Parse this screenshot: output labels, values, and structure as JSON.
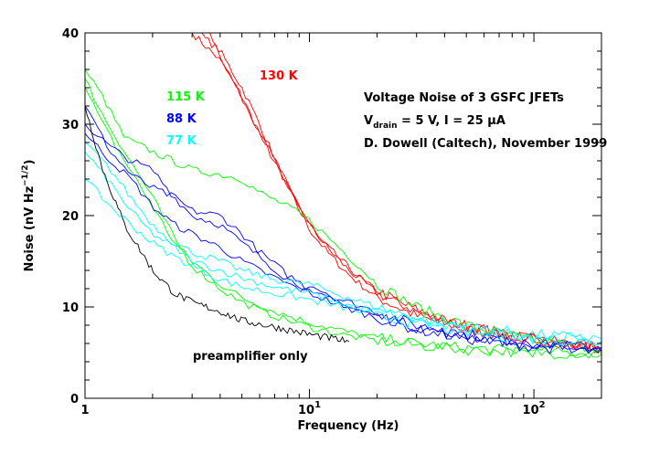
{
  "chart_data": {
    "type": "line",
    "title": "Voltage Noise of 3 GSFC JFETs",
    "subtitle_lines": [
      {
        "prefix": "V",
        "sub": "drain",
        "rest": " = 5 V, I = 25 μA"
      },
      {
        "text": "D. Dowell (Caltech), November 1999"
      }
    ],
    "xlabel": "Frequency (Hz)",
    "ylabel": {
      "main": "Noise (nV Hz",
      "sup": "−1/2",
      "end": ")"
    },
    "x_scale": "log",
    "xlim": [
      1,
      200
    ],
    "ylim": [
      0,
      40
    ],
    "x_ticks": [
      {
        "value": 1,
        "base": "1",
        "exp": ""
      },
      {
        "value": 10,
        "base": "10",
        "exp": "1"
      },
      {
        "value": 100,
        "base": "10",
        "exp": "2"
      }
    ],
    "y_ticks": [
      0,
      10,
      20,
      30,
      40
    ],
    "series_labels": [
      {
        "text": "130 K",
        "color": "#ff0000"
      },
      {
        "text": "115 K",
        "color": "#00ff00"
      },
      {
        "text": "88 K",
        "color": "#0000ff"
      },
      {
        "text": "77 K",
        "color": "#00ffff"
      },
      {
        "text": "preamplifier only",
        "color": "#000000"
      }
    ],
    "series": [
      {
        "color": "#ff0000",
        "x": [
          3,
          4,
          5,
          6,
          8,
          10,
          12,
          15,
          20,
          30,
          50,
          100,
          200
        ],
        "y": [
          40,
          37,
          33,
          29,
          23,
          18.5,
          16,
          13.5,
          11,
          9,
          7.5,
          6.5,
          5.5
        ]
      },
      {
        "color": "#ff0000",
        "x": [
          3.2,
          4,
          5,
          6,
          8,
          10,
          12,
          15,
          20,
          30,
          50,
          100,
          200
        ],
        "y": [
          40,
          38,
          34,
          30,
          23,
          19,
          16.5,
          14,
          11.5,
          9.5,
          7.8,
          6.5,
          5.6
        ]
      },
      {
        "color": "#ff0000",
        "x": [
          3.6,
          4.5,
          5.5,
          7,
          9,
          11,
          14,
          18,
          25,
          40,
          70,
          120,
          200
        ],
        "y": [
          40,
          35,
          31,
          26,
          21,
          17.5,
          15,
          12.5,
          10.5,
          8.5,
          7.2,
          6.2,
          5.4
        ]
      },
      {
        "color": "#00ff00",
        "x": [
          1,
          1.2,
          1.5,
          2,
          3,
          4,
          5,
          6,
          8,
          10,
          15,
          20,
          30,
          50,
          100,
          200
        ],
        "y": [
          36,
          33,
          28.5,
          27,
          25,
          24.5,
          24,
          22.5,
          21,
          19.5,
          15.5,
          12.5,
          10,
          8,
          6.3,
          5.5
        ]
      },
      {
        "color": "#00ff00",
        "x": [
          1,
          1.2,
          1.5,
          2,
          2.5,
          3,
          4,
          5,
          7,
          10,
          15,
          20,
          30,
          50,
          100,
          200
        ],
        "y": [
          34,
          30,
          26,
          21,
          17,
          15,
          12.5,
          11,
          9.5,
          8.3,
          7.2,
          6.6,
          6,
          5.5,
          5.1,
          4.9
        ]
      },
      {
        "color": "#00ff00",
        "x": [
          1,
          1.2,
          1.5,
          2,
          2.5,
          3,
          4,
          5,
          7,
          10,
          15,
          20,
          30,
          50,
          100,
          200
        ],
        "y": [
          35,
          31,
          27,
          22,
          17.5,
          14.5,
          12,
          10.5,
          9,
          7.8,
          6.8,
          6.3,
          5.8,
          5.3,
          5,
          4.8
        ]
      },
      {
        "color": "#0000ff",
        "x": [
          1,
          1.3,
          1.6,
          2,
          2.5,
          3,
          4,
          5,
          6,
          8,
          10,
          15,
          20,
          30,
          50,
          100,
          200
        ],
        "y": [
          32,
          27,
          24.5,
          23,
          22,
          20.5,
          20,
          18,
          16,
          13.5,
          12,
          10.5,
          9.5,
          8,
          7,
          6,
          5.5
        ]
      },
      {
        "color": "#0000ff",
        "x": [
          1,
          1.3,
          1.6,
          2,
          2.5,
          3,
          4,
          5,
          6,
          8,
          10,
          15,
          20,
          30,
          50,
          100,
          200
        ],
        "y": [
          30,
          27.5,
          26,
          25,
          22,
          20,
          19,
          17,
          15.5,
          13,
          12,
          10,
          9,
          7.8,
          6.8,
          5.8,
          5.3
        ]
      },
      {
        "color": "#0000ff",
        "x": [
          1,
          1.3,
          1.6,
          2,
          2.5,
          3,
          4,
          5,
          6,
          8,
          10,
          15,
          20,
          30,
          50,
          100,
          200
        ],
        "y": [
          29,
          26,
          24,
          21,
          19,
          18,
          16.5,
          15,
          14,
          12.5,
          11.5,
          9.8,
          8.8,
          7.5,
          6.5,
          5.6,
          5.1
        ]
      },
      {
        "color": "#00ffff",
        "x": [
          1,
          1.3,
          1.6,
          2,
          2.5,
          3,
          4,
          5,
          7,
          10,
          15,
          20,
          30,
          50,
          100,
          200
        ],
        "y": [
          28,
          25,
          22,
          19,
          17,
          16,
          15,
          14,
          13,
          12.5,
          11,
          10,
          8.8,
          7.8,
          7,
          6.5
        ]
      },
      {
        "color": "#00ffff",
        "x": [
          1,
          1.3,
          1.6,
          2,
          2.5,
          3,
          4,
          5,
          7,
          10,
          15,
          20,
          30,
          50,
          100,
          200
        ],
        "y": [
          27,
          23.5,
          20.5,
          18,
          16.5,
          15,
          14,
          13.2,
          12.2,
          11.5,
          10.2,
          9.5,
          8.5,
          7.5,
          6.8,
          6.3
        ]
      },
      {
        "color": "#00ffff",
        "x": [
          1,
          1.3,
          1.6,
          2,
          2.5,
          3,
          4,
          5,
          7,
          10,
          15,
          20,
          30,
          50,
          100,
          200
        ],
        "y": [
          24,
          21,
          19,
          17,
          15.5,
          14.5,
          13,
          12.2,
          11.5,
          10.8,
          9.8,
          9,
          8.2,
          7.2,
          6.5,
          6.1
        ]
      },
      {
        "color": "#000000",
        "x": [
          1,
          1.2,
          1.5,
          2,
          2.5,
          3,
          4,
          5,
          7,
          10,
          15
        ],
        "y": [
          32,
          25,
          19,
          14,
          11.5,
          10.5,
          9.5,
          8.5,
          7.8,
          7,
          6.2
        ]
      }
    ]
  }
}
